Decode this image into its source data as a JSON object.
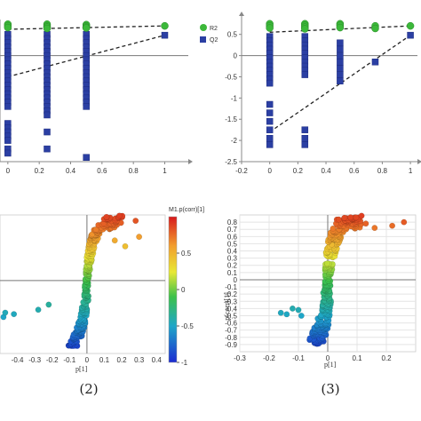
{
  "captions": [
    "(2)",
    "(3)"
  ],
  "chart_data": [
    {
      "type": "scatter",
      "panel": "top-left permutation plot",
      "xlim": [
        -0.05,
        1.15
      ],
      "ylim": [
        -2.5,
        0.85
      ],
      "xticks": [
        "0",
        "0.2",
        "0.4",
        "0.6",
        "0.8",
        "1"
      ],
      "xtick_values": [
        0,
        0.2,
        0.4,
        0.6,
        0.8,
        1
      ],
      "legend": [
        "R2",
        "Q2"
      ],
      "legend_position": "top-right",
      "series": [
        {
          "name": "R2",
          "x": [
            0,
            0,
            0,
            0.25,
            0.25,
            0.25,
            0.25,
            0.5,
            0.5,
            0.5,
            0.5,
            1
          ],
          "y": [
            0.74,
            0.7,
            0.66,
            0.74,
            0.7,
            0.67,
            0.64,
            0.73,
            0.7,
            0.67,
            0.65,
            0.7
          ]
        },
        {
          "name": "Q2",
          "x": [
            0,
            0,
            0,
            0,
            0,
            0,
            0,
            0,
            0,
            0,
            0,
            0,
            0,
            0,
            0,
            0,
            0,
            0,
            0,
            0,
            0,
            0,
            0,
            0,
            0,
            0.25,
            0.25,
            0.25,
            0.25,
            0.25,
            0.25,
            0.25,
            0.25,
            0.25,
            0.25,
            0.25,
            0.25,
            0.25,
            0.25,
            0.25,
            0.25,
            0.25,
            0.25,
            0.25,
            0.25,
            0.25,
            0.25,
            0.5,
            0.5,
            0.5,
            0.5,
            0.5,
            0.5,
            0.5,
            0.5,
            0.5,
            0.5,
            0.5,
            0.5,
            0.5,
            0.5,
            0.5,
            0.5,
            0.5,
            0.5,
            0.5,
            1
          ],
          "y": [
            0.5,
            0.4,
            0.3,
            0.2,
            0.1,
            0.0,
            -0.1,
            -0.2,
            -0.3,
            -0.4,
            -0.5,
            -0.6,
            -0.7,
            -0.8,
            -0.9,
            -1.0,
            -1.1,
            -1.2,
            -1.6,
            -1.7,
            -1.8,
            -1.9,
            -2.0,
            -2.2,
            -2.3,
            0.5,
            0.4,
            0.3,
            0.2,
            0.1,
            0.0,
            -0.1,
            -0.2,
            -0.3,
            -0.4,
            -0.5,
            -0.6,
            -0.7,
            -0.8,
            -0.9,
            -1.0,
            -1.1,
            -1.2,
            -1.3,
            -1.4,
            -1.8,
            -2.2,
            0.5,
            0.4,
            0.3,
            0.2,
            0.1,
            0.0,
            -0.1,
            -0.2,
            -0.3,
            -0.4,
            -0.5,
            -0.6,
            -0.7,
            -0.8,
            -0.9,
            -1.0,
            -1.1,
            -1.2,
            -2.4,
            0.48
          ]
        }
      ],
      "regression_lines": [
        {
          "series": "R2",
          "x": [
            0,
            1
          ],
          "y": [
            0.62,
            0.7
          ]
        },
        {
          "series": "Q2",
          "x": [
            0,
            1
          ],
          "y": [
            -0.5,
            0.48
          ]
        }
      ],
      "horizontal_line": 0
    },
    {
      "type": "scatter",
      "panel": "top-right permutation plot",
      "xlim": [
        -0.2,
        1.05
      ],
      "ylim": [
        -2.5,
        0.85
      ],
      "xticks": [
        "-0.2",
        "0",
        "0.2",
        "0.4",
        "0.6",
        "0.8",
        "1"
      ],
      "xtick_values": [
        -0.2,
        0,
        0.2,
        0.4,
        0.6,
        0.8,
        1
      ],
      "yticks": [
        "0.5",
        "0",
        "-0.5",
        "-1",
        "-1.5",
        "-2",
        "-2.5"
      ],
      "ytick_values": [
        0.5,
        0,
        -0.5,
        -1,
        -1.5,
        -2,
        -2.5
      ],
      "series": [
        {
          "name": "R2",
          "x": [
            0,
            0,
            0,
            0.25,
            0.25,
            0.25,
            0.25,
            0.5,
            0.5,
            0.5,
            0.75,
            0.75,
            1
          ],
          "y": [
            0.75,
            0.7,
            0.65,
            0.75,
            0.71,
            0.67,
            0.63,
            0.75,
            0.71,
            0.66,
            0.7,
            0.64,
            0.7
          ]
        },
        {
          "name": "Q2",
          "x": [
            0,
            0,
            0,
            0,
            0,
            0,
            0,
            0,
            0,
            0,
            0,
            0,
            0,
            0,
            0,
            0,
            0,
            0,
            0.25,
            0.25,
            0.25,
            0.25,
            0.25,
            0.25,
            0.25,
            0.25,
            0.25,
            0.25,
            0.25,
            0.25,
            0.25,
            0.5,
            0.5,
            0.5,
            0.5,
            0.5,
            0.5,
            0.5,
            0.75,
            1
          ],
          "y": [
            0.45,
            0.35,
            0.25,
            0.15,
            0.05,
            -0.05,
            -0.15,
            -0.25,
            -0.35,
            -0.45,
            -0.55,
            -0.65,
            -1.15,
            -1.35,
            -1.55,
            -1.75,
            -1.95,
            -2.1,
            0.45,
            0.35,
            0.25,
            0.15,
            0.05,
            -0.05,
            -0.15,
            -0.25,
            -0.35,
            -0.45,
            -1.75,
            -1.95,
            -2.1,
            0.3,
            0.15,
            0.0,
            -0.15,
            -0.3,
            -0.45,
            -0.6,
            -0.15,
            0.48
          ]
        }
      ],
      "regression_lines": [
        {
          "series": "R2",
          "x": [
            0,
            1
          ],
          "y": [
            0.55,
            0.7
          ]
        },
        {
          "series": "Q2",
          "x": [
            0,
            1
          ],
          "y": [
            -1.8,
            0.48
          ]
        }
      ],
      "horizontal_line": 0
    },
    {
      "type": "scatter",
      "panel": "(2) S-plot",
      "xlabel": "p[1]",
      "colorbar_label": "M1.p(corr)[1]",
      "colorbar_ticks": [
        "0.5",
        "0",
        "-0.5",
        "-1"
      ],
      "colorbar_tick_values": [
        0.5,
        0,
        -0.5,
        -1
      ],
      "colorbar_range": [
        -1,
        1
      ],
      "xlim": [
        -0.5,
        0.45
      ],
      "ylim": [
        -1,
        0.9
      ],
      "xticks": [
        "-0.4",
        "-0.3",
        "-0.2",
        "-0.1",
        "0",
        "0.1",
        "0.2",
        "0.3",
        "0.4"
      ],
      "xtick_values": [
        -0.4,
        -0.3,
        -0.2,
        -0.1,
        0,
        0.1,
        0.2,
        0.3,
        0.4
      ],
      "extra_points": {
        "x": [
          0.28,
          0.3,
          0.22,
          0.16,
          -0.47,
          -0.42,
          -0.22,
          -0.28,
          -0.48
        ],
        "y": [
          0.82,
          0.6,
          0.47,
          0.55,
          -0.44,
          -0.46,
          -0.33,
          -0.4,
          -0.5
        ]
      },
      "horizontal_line": 0,
      "vertical_line": 0
    },
    {
      "type": "scatter",
      "panel": "(3) S-plot",
      "xlabel": "p[1]",
      "ylabel": "p(corr)[1]",
      "xlim": [
        -0.3,
        0.3
      ],
      "ylim": [
        -1,
        0.9
      ],
      "xticks": [
        "-0.3",
        "-0.2",
        "-0.1",
        "0",
        "0.1",
        "0.2"
      ],
      "xtick_values": [
        -0.3,
        -0.2,
        -0.1,
        0,
        0.1,
        0.2
      ],
      "yticks": [
        "0.8",
        "0.7",
        "0.6",
        "0.5",
        "0.4",
        "0.3",
        "0.2",
        "0.1",
        "0",
        "-0.1",
        "-0.2",
        "-0.3",
        "-0.4",
        "-0.5",
        "-0.6",
        "-0.7",
        "-0.8",
        "-0.9"
      ],
      "ytick_values": [
        0.8,
        0.7,
        0.6,
        0.5,
        0.4,
        0.3,
        0.2,
        0.1,
        0,
        -0.1,
        -0.2,
        -0.3,
        -0.4,
        -0.5,
        -0.6,
        -0.7,
        -0.8,
        -0.9
      ],
      "extra_points": {
        "x": [
          0.26,
          0.22,
          0.16,
          0.13,
          -0.16,
          -0.14,
          -0.12,
          -0.1,
          -0.09
        ],
        "y": [
          0.8,
          0.75,
          0.72,
          0.78,
          -0.46,
          -0.48,
          -0.4,
          -0.42,
          -0.5
        ]
      },
      "horizontal_line": 0,
      "vertical_line": 0
    }
  ],
  "colors": {
    "r2": "#3cb83a",
    "q2": "#2b3fa3",
    "axis": "#888888",
    "grid": "#e4e4e4",
    "zero_line": "#777777"
  }
}
